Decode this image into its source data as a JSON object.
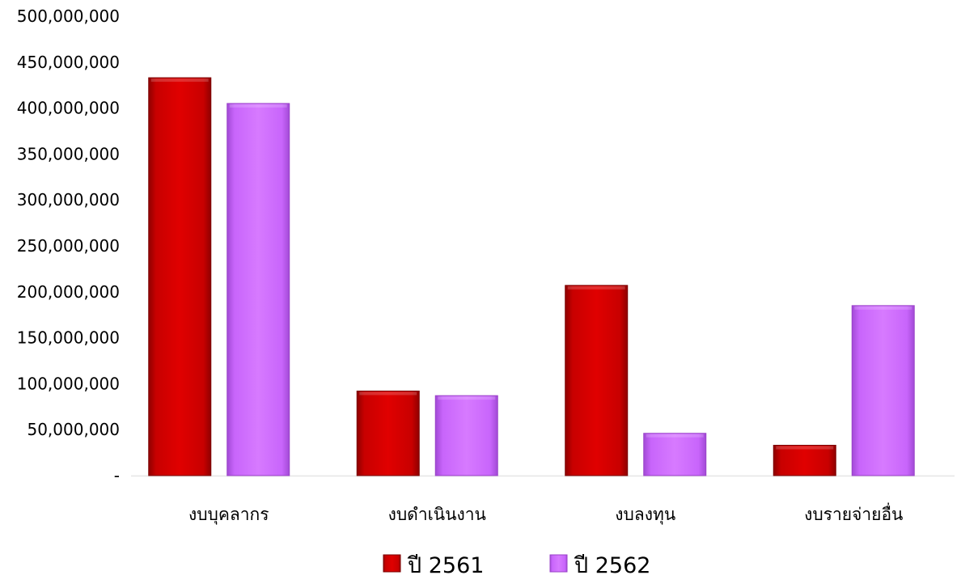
{
  "chart_data": {
    "type": "bar",
    "title": "",
    "xlabel": "",
    "ylabel": "",
    "categories": [
      "งบบุคลากร",
      "งบดำเนินงาน",
      "งบลงทุน",
      "งบรายจ่ายอื่น"
    ],
    "series": [
      {
        "name": "ปี 2561",
        "color": "#cc0000",
        "values": [
          433000000,
          92000000,
          207000000,
          33000000
        ]
      },
      {
        "name": "ปี 2562",
        "color": "#cc66ff",
        "values": [
          405000000,
          87000000,
          46000000,
          185000000
        ]
      }
    ],
    "ylim": [
      0,
      500000000
    ],
    "yticks": [
      0,
      50000000,
      100000000,
      150000000,
      200000000,
      250000000,
      300000000,
      350000000,
      400000000,
      450000000,
      500000000
    ],
    "ytick_labels": [
      "-",
      "50,000,000",
      "100,000,000",
      "150,000,000",
      "200,000,000",
      "250,000,000",
      "300,000,000",
      "350,000,000",
      "400,000,000",
      "450,000,000",
      "500,000,000"
    ],
    "grid": false,
    "legend_position": "bottom-center"
  }
}
